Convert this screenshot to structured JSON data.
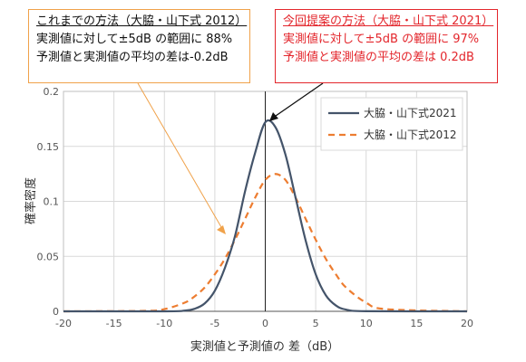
{
  "callouts": {
    "old": {
      "title": "これまでの方法（大脇・山下式 2012）",
      "line1": "実測値に対して±5dB の範囲に 88%",
      "line2": "予測値と実測値の平均の差は-0.2dB"
    },
    "new": {
      "title": "今回提案の方法（大脇・山下式 2021）",
      "line1": "実測値に対して±5dB の範囲に 97%",
      "line2": "予測値と実測値の平均の差は 0.2dB"
    }
  },
  "colors": {
    "new_series": "#44546a",
    "old_series": "#ed7d31",
    "callout_old_border": "#f0a24a",
    "callout_new_border": "#e3262c",
    "grid": "#d9d9d9"
  },
  "chart_data": {
    "type": "line",
    "xlabel": "実測値と予測値の 差（dB）",
    "ylabel": "確率密度",
    "xlim": [
      -20,
      20
    ],
    "ylim": [
      0,
      0.2
    ],
    "x_ticks": [
      "-20",
      "-15",
      "-10",
      "-5",
      "0",
      "5",
      "10",
      "15",
      "20"
    ],
    "y_ticks": [
      "0",
      "0.05",
      "0.1",
      "0.15",
      "0.2"
    ],
    "grid": true,
    "legend": "top-right",
    "series": [
      {
        "name": "大脇・山下式2021",
        "style": "solid",
        "x": [
          -20,
          -10,
          -8,
          -7,
          -6,
          -5,
          -4,
          -3,
          -2,
          -1,
          0,
          1,
          2,
          3,
          4,
          5,
          6,
          7,
          8,
          10,
          20
        ],
        "y": [
          0,
          0.0,
          0.0006,
          0.0023,
          0.0072,
          0.0187,
          0.0395,
          0.0684,
          0.1093,
          0.1443,
          0.172,
          0.1676,
          0.1425,
          0.1036,
          0.0645,
          0.0336,
          0.0146,
          0.0053,
          0.0016,
          0.0001,
          0
        ]
      },
      {
        "name": "大脇・山下式2012",
        "style": "dashed",
        "x": [
          -20,
          -12,
          -10,
          -8,
          -7,
          -6,
          -5,
          -4,
          -3,
          -2,
          -1,
          0,
          1,
          2,
          3,
          4,
          5,
          6,
          7,
          8,
          10,
          12,
          20
        ],
        "y": [
          0,
          0.0004,
          0.002,
          0.0078,
          0.0136,
          0.0217,
          0.0336,
          0.0478,
          0.0651,
          0.0841,
          0.1034,
          0.1195,
          0.1249,
          0.1195,
          0.1034,
          0.0841,
          0.0651,
          0.0478,
          0.0336,
          0.0217,
          0.0078,
          0.002,
          0
        ]
      }
    ]
  }
}
